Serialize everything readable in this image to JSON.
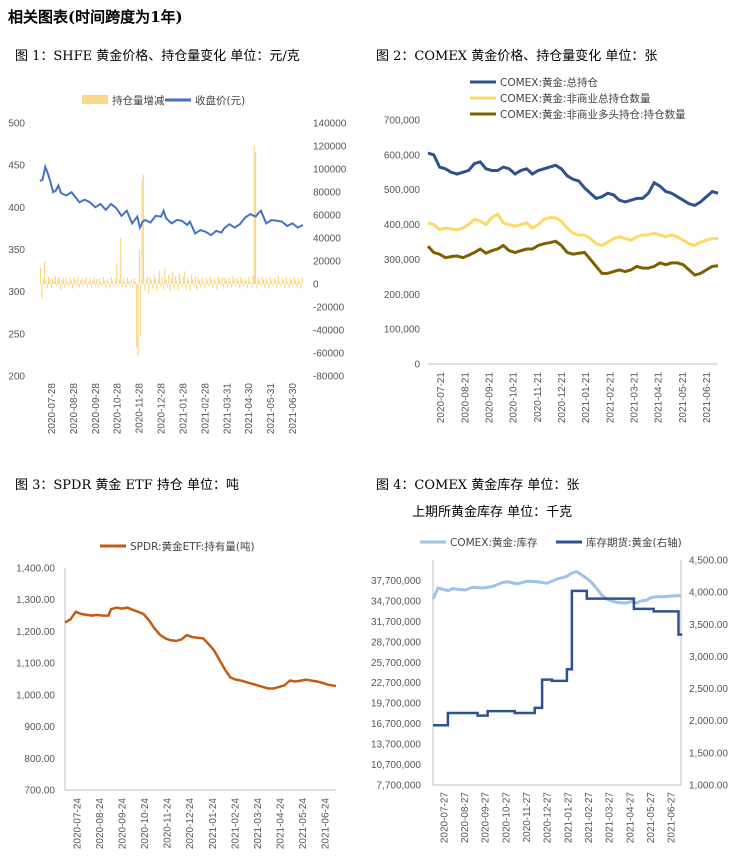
{
  "header": {
    "title": "相关图表(时间跨度为1年)"
  },
  "titles": {
    "c1": "图 1：SHFE 黄金价格、持仓量变化   单位：元/克",
    "c2": "图 2：COMEX 黄金价格、持仓量变化   单位：张",
    "c3": "图 3：SPDR 黄金 ETF 持仓   单位：吨",
    "c4a": "图 4：COMEX 黄金库存   单位：张",
    "c4b": "上期所黄金库存   单位：千克"
  },
  "chart_data": [
    {
      "id": "chart1",
      "type": "line",
      "x_labels": [
        "2020-07-28",
        "2020-08-28",
        "2020-09-28",
        "2020-10-28",
        "2020-11-28",
        "2020-12-28",
        "2021-01-28",
        "2021-02-28",
        "2021-03-31",
        "2021-04-30",
        "2021-05-31",
        "2021-06-30"
      ],
      "ylim_left": [
        200,
        500
      ],
      "yticks_left": [
        "200",
        "250",
        "300",
        "350",
        "400",
        "450",
        "500"
      ],
      "ylim_right": [
        -80000,
        140000
      ],
      "yticks_right": [
        "-80000",
        "-60000",
        "-40000",
        "-20000",
        "0",
        "20000",
        "40000",
        "60000",
        "80000",
        "100000",
        "120000",
        "140000"
      ],
      "series": [
        {
          "name": "持仓量增减",
          "axis": "right",
          "kind": "bar",
          "color": "#FAD889",
          "values": [
            14000,
            -13000,
            5000,
            20000,
            3000,
            -4000,
            6000,
            4000,
            -3000,
            5000,
            2000,
            7000,
            -2000,
            4000,
            6000,
            -5000,
            3000,
            5000,
            -3000,
            6000,
            2000,
            -2000,
            5000,
            3000,
            -4000,
            6000,
            4000,
            -2000,
            7000,
            -3000,
            3000,
            5000,
            -2000,
            4000,
            6000,
            -3000,
            2000,
            5000,
            -4000,
            3000,
            6000,
            -2000,
            4000,
            -3000,
            5000,
            2000,
            -2000,
            6000,
            3000,
            -4000,
            4000,
            2000,
            -3000,
            6000,
            3000,
            -2000,
            5000,
            17000,
            -3000,
            4000,
            40000,
            -3000,
            5000,
            2000,
            -4000,
            6000,
            3000,
            -2000,
            4000,
            -3000,
            5000,
            2000,
            -55000,
            -62000,
            30000,
            -45000,
            90000,
            95000,
            -5000,
            4000,
            7000,
            -8000,
            6000,
            3000,
            -4000,
            8000,
            5000,
            -6000,
            4000,
            12000,
            -3000,
            6000,
            -5000,
            14000,
            4000,
            -3000,
            8000,
            -6000,
            5000,
            10000,
            -4000,
            7000,
            3000,
            -5000,
            9000,
            4000,
            -3000,
            6000,
            11000,
            -4000,
            5000,
            3000,
            -6000,
            8000,
            4000,
            -2000,
            7000,
            -5000,
            5000,
            3000,
            -3000,
            6000,
            2000,
            -4000,
            5000,
            3000,
            -2000,
            6000,
            4000,
            -3000,
            5000,
            3000,
            -5000,
            7000,
            4000,
            -2000,
            6000,
            -3000,
            5000,
            3000,
            -4000,
            6000,
            2000,
            -3000,
            7000,
            4000,
            -2000,
            5000,
            3000,
            -3000,
            6000,
            4000,
            -2000,
            5000,
            3000,
            -4000,
            6000,
            2000,
            -3000,
            7000,
            120000,
            115000,
            -4000,
            5000,
            3000,
            -2000,
            6000,
            4000,
            -3000,
            5000,
            2000,
            -4000,
            6000,
            3000,
            -2000,
            5000,
            4000,
            -3000,
            7000,
            2000,
            -2000,
            5000,
            3000,
            -4000,
            6000,
            2000,
            -3000,
            5000,
            4000,
            -2000,
            6000,
            3000,
            -3000,
            5000,
            2000,
            -4000,
            6000
          ]
        },
        {
          "name": "收盘价(元)",
          "axis": "left",
          "kind": "line",
          "color": "#4472C4",
          "x": [
            0,
            0.01,
            0.02,
            0.03,
            0.04,
            0.05,
            0.06,
            0.07,
            0.08,
            0.1,
            0.12,
            0.14,
            0.15,
            0.17,
            0.19,
            0.21,
            0.23,
            0.25,
            0.27,
            0.29,
            0.31,
            0.33,
            0.35,
            0.37,
            0.38,
            0.39,
            0.4,
            0.42,
            0.44,
            0.46,
            0.47,
            0.48,
            0.5,
            0.52,
            0.54,
            0.56,
            0.57,
            0.59,
            0.61,
            0.63,
            0.65,
            0.67,
            0.69,
            0.7,
            0.72,
            0.74,
            0.76,
            0.78,
            0.8,
            0.82,
            0.83,
            0.84,
            0.86,
            0.88,
            0.9,
            0.92,
            0.94,
            0.96,
            0.98,
            1.0
          ],
          "values": [
            431,
            433,
            448,
            440,
            430,
            418,
            420,
            426,
            417,
            414,
            418,
            410,
            406,
            409,
            406,
            400,
            404,
            397,
            404,
            399,
            390,
            396,
            381,
            389,
            376,
            383,
            385,
            382,
            390,
            389,
            396,
            387,
            381,
            385,
            384,
            379,
            383,
            369,
            373,
            371,
            367,
            372,
            370,
            375,
            380,
            376,
            380,
            388,
            392,
            389,
            393,
            396,
            381,
            385,
            384,
            383,
            378,
            381,
            376,
            379
          ]
        }
      ],
      "legend": "top"
    },
    {
      "id": "chart2",
      "type": "line",
      "x_labels": [
        "2020-07-21",
        "2020-08-21",
        "2020-09-21",
        "2020-10-21",
        "2020-11-21",
        "2020-12-21",
        "2021-01-21",
        "2021-02-21",
        "2021-03-21",
        "2021-04-21",
        "2021-05-21",
        "2021-06-21"
      ],
      "ylim": [
        0,
        700000
      ],
      "yticks": [
        "0",
        "100,000",
        "200,000",
        "300,000",
        "400,000",
        "500,000",
        "600,000",
        "700,000"
      ],
      "x": [
        0,
        0.02,
        0.04,
        0.06,
        0.08,
        0.1,
        0.12,
        0.14,
        0.16,
        0.18,
        0.2,
        0.22,
        0.24,
        0.26,
        0.28,
        0.3,
        0.32,
        0.34,
        0.36,
        0.38,
        0.4,
        0.42,
        0.44,
        0.46,
        0.48,
        0.5,
        0.52,
        0.54,
        0.56,
        0.58,
        0.6,
        0.62,
        0.64,
        0.66,
        0.68,
        0.7,
        0.72,
        0.74,
        0.76,
        0.78,
        0.8,
        0.82,
        0.84,
        0.86,
        0.88,
        0.9,
        0.92,
        0.94,
        0.96,
        0.98,
        1.0
      ],
      "series": [
        {
          "name": "COMEX:黄金:总持仓",
          "color": "#2F528F",
          "values": [
            605000,
            600000,
            565000,
            560000,
            550000,
            545000,
            550000,
            555000,
            575000,
            580000,
            560000,
            555000,
            555000,
            565000,
            560000,
            545000,
            555000,
            560000,
            545000,
            555000,
            560000,
            565000,
            570000,
            560000,
            540000,
            530000,
            525000,
            505000,
            490000,
            475000,
            480000,
            490000,
            485000,
            470000,
            465000,
            470000,
            475000,
            475000,
            490000,
            520000,
            510000,
            495000,
            490000,
            480000,
            470000,
            460000,
            455000,
            465000,
            480000,
            495000,
            490000
          ]
        },
        {
          "name": "COMEX:黄金:非商业总持仓数量",
          "color": "#FFD966",
          "values": [
            405000,
            400000,
            385000,
            390000,
            388000,
            385000,
            390000,
            400000,
            415000,
            410000,
            400000,
            420000,
            430000,
            405000,
            400000,
            395000,
            400000,
            405000,
            390000,
            400000,
            415000,
            420000,
            420000,
            410000,
            390000,
            375000,
            370000,
            370000,
            360000,
            345000,
            340000,
            350000,
            360000,
            365000,
            360000,
            355000,
            365000,
            370000,
            370000,
            375000,
            370000,
            365000,
            370000,
            365000,
            355000,
            345000,
            340000,
            350000,
            355000,
            360000,
            360000
          ]
        },
        {
          "name": "COMEX:黄金:非商业多头持仓:持仓数量",
          "color": "#7F6000",
          "values": [
            338000,
            320000,
            315000,
            305000,
            308000,
            310000,
            305000,
            312000,
            320000,
            330000,
            318000,
            325000,
            330000,
            340000,
            325000,
            320000,
            325000,
            330000,
            330000,
            340000,
            345000,
            348000,
            352000,
            340000,
            320000,
            315000,
            318000,
            320000,
            300000,
            280000,
            260000,
            260000,
            265000,
            270000,
            265000,
            270000,
            280000,
            275000,
            275000,
            280000,
            290000,
            285000,
            290000,
            290000,
            285000,
            270000,
            255000,
            260000,
            270000,
            280000,
            282000
          ]
        }
      ],
      "legend": "top-left"
    },
    {
      "id": "chart3",
      "type": "line",
      "x_labels": [
        "2020-07-24",
        "2020-08-24",
        "2020-09-24",
        "2020-10-24",
        "2020-11-24",
        "2020-12-24",
        "2021-01-24",
        "2021-02-24",
        "2021-03-24",
        "2021-04-24",
        "2021-05-24",
        "2021-06-24"
      ],
      "ylim": [
        700,
        1400
      ],
      "yticks": [
        "700.00",
        "800.00",
        "900.00",
        "1,000.00",
        "1,100.00",
        "1,200.00",
        "1,300.00",
        "1,400.00"
      ],
      "x": [
        0,
        0.02,
        0.04,
        0.06,
        0.08,
        0.1,
        0.12,
        0.14,
        0.16,
        0.17,
        0.19,
        0.21,
        0.23,
        0.25,
        0.27,
        0.29,
        0.31,
        0.33,
        0.35,
        0.37,
        0.39,
        0.41,
        0.43,
        0.45,
        0.47,
        0.49,
        0.51,
        0.53,
        0.55,
        0.57,
        0.59,
        0.61,
        0.63,
        0.65,
        0.67,
        0.69,
        0.71,
        0.73,
        0.75,
        0.77,
        0.79,
        0.81,
        0.83,
        0.85,
        0.87,
        0.89,
        0.91,
        0.93,
        0.95,
        0.97,
        1.0
      ],
      "series": [
        {
          "name": "SPDR:黄金ETF:持有量(吨)",
          "color": "#C55A11",
          "values": [
            1228,
            1238,
            1262,
            1255,
            1252,
            1250,
            1252,
            1250,
            1250,
            1270,
            1275,
            1272,
            1275,
            1268,
            1262,
            1255,
            1235,
            1210,
            1190,
            1178,
            1172,
            1170,
            1175,
            1188,
            1182,
            1180,
            1178,
            1160,
            1140,
            1110,
            1080,
            1055,
            1048,
            1045,
            1040,
            1035,
            1030,
            1025,
            1020,
            1020,
            1025,
            1030,
            1045,
            1042,
            1045,
            1048,
            1045,
            1042,
            1038,
            1032,
            1028
          ]
        }
      ],
      "legend": "top"
    },
    {
      "id": "chart4",
      "type": "line",
      "x_labels": [
        "2020-07-27",
        "2020-08-27",
        "2020-09-27",
        "2020-10-27",
        "2020-11-27",
        "2020-12-27",
        "2021-01-27",
        "2021-02-27",
        "2021-03-27",
        "2021-04-27",
        "2021-05-27",
        "2021-06-27"
      ],
      "ylim_left": [
        7700000,
        40700000
      ],
      "yticks_left": [
        "7,700,000",
        "10,700,000",
        "13,700,000",
        "16,700,000",
        "19,700,000",
        "22,700,000",
        "25,700,000",
        "28,700,000",
        "31,700,000",
        "34,700,000",
        "37,700,000"
      ],
      "ylim_right": [
        1000,
        4500
      ],
      "yticks_right": [
        "1,000.00",
        "1,500.00",
        "2,000.00",
        "2,500.00",
        "3,000.00",
        "3,500.00",
        "4,000.00",
        "4,500.00"
      ],
      "series": [
        {
          "name": "COMEX:黄金:库存",
          "axis": "left",
          "kind": "line",
          "color": "#9DC3E6",
          "x": [
            0,
            0.02,
            0.04,
            0.06,
            0.08,
            0.1,
            0.13,
            0.16,
            0.2,
            0.24,
            0.28,
            0.3,
            0.34,
            0.38,
            0.42,
            0.46,
            0.5,
            0.54,
            0.56,
            0.58,
            0.6,
            0.62,
            0.64,
            0.66,
            0.68,
            0.7,
            0.72,
            0.74,
            0.76,
            0.78,
            0.8,
            0.82,
            0.84,
            0.86,
            0.88,
            0.9,
            0.93,
            0.96,
            1.0
          ],
          "values": [
            35000000,
            36600000,
            36400000,
            36200000,
            36500000,
            36400000,
            36300000,
            36700000,
            36600000,
            36800000,
            37400000,
            37500000,
            37200000,
            37600000,
            37500000,
            37300000,
            37900000,
            38300000,
            38800000,
            39000000,
            38500000,
            38000000,
            37400000,
            36500000,
            35600000,
            35000000,
            34700000,
            34500000,
            34400000,
            34400000,
            34600000,
            34400000,
            34700000,
            34800000,
            35200000,
            35300000,
            35300000,
            35400000,
            35500000
          ]
        },
        {
          "name": "库存期货:黄金(右轴)",
          "axis": "right",
          "kind": "step",
          "color": "#2F528F",
          "x": [
            0,
            0.05,
            0.06,
            0.17,
            0.18,
            0.21,
            0.22,
            0.32,
            0.33,
            0.34,
            0.4,
            0.41,
            0.43,
            0.44,
            0.46,
            0.48,
            0.5,
            0.51,
            0.52,
            0.54,
            0.56,
            0.61,
            0.62,
            0.8,
            0.81,
            0.88,
            0.89,
            0.98,
            0.99,
            1.0
          ],
          "values": [
            1930,
            1930,
            2120,
            2120,
            2080,
            2080,
            2150,
            2150,
            2120,
            2120,
            2120,
            2200,
            2200,
            2640,
            2640,
            2620,
            2620,
            2620,
            2620,
            2800,
            4020,
            4020,
            3900,
            3900,
            3740,
            3740,
            3700,
            3700,
            3340,
            3320
          ]
        }
      ],
      "legend": "top"
    }
  ]
}
